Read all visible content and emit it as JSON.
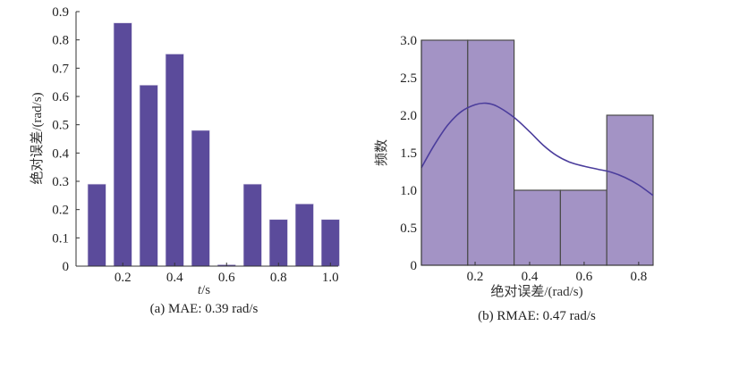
{
  "chart_data": [
    {
      "type": "bar",
      "x": [
        0.1,
        0.2,
        0.3,
        0.4,
        0.5,
        0.6,
        0.7,
        0.8,
        0.9,
        1.0
      ],
      "values": [
        0.29,
        0.86,
        0.64,
        0.75,
        0.48,
        0.005,
        0.29,
        0.165,
        0.22,
        0.165
      ],
      "xlabel_italic": "t",
      "xlabel_rest": "/s",
      "ylabel": "绝对误差/(rad/s)",
      "caption": "(a) MAE: 0.39 rad/s",
      "xlim": [
        0.02,
        1.03
      ],
      "ylim": [
        0,
        0.9
      ],
      "xticks": [
        0.2,
        0.4,
        0.6,
        0.8,
        1.0
      ],
      "xtick_labels": [
        "0.2",
        "0.4",
        "0.6",
        "0.8",
        "1.0"
      ],
      "yticks": [
        0,
        0.1,
        0.2,
        0.3,
        0.4,
        0.5,
        0.6,
        0.7,
        0.8,
        0.9
      ],
      "ytick_labels": [
        "0",
        "0.1",
        "0.2",
        "0.3",
        "0.4",
        "0.5",
        "0.6",
        "0.7",
        "0.8",
        "0.9"
      ],
      "color": "#5b4b9b",
      "grid": false
    },
    {
      "type": "histogram",
      "bin_edges": [
        0.003,
        0.173,
        0.343,
        0.513,
        0.683,
        0.853
      ],
      "counts": [
        3,
        3,
        1,
        1,
        2
      ],
      "kde": {
        "x": [
          0.003,
          0.05,
          0.1,
          0.15,
          0.2,
          0.24,
          0.28,
          0.343,
          0.4,
          0.45,
          0.5,
          0.55,
          0.6,
          0.65,
          0.7,
          0.75,
          0.8,
          0.853
        ],
        "y": [
          1.3,
          1.6,
          1.87,
          2.05,
          2.14,
          2.16,
          2.12,
          1.97,
          1.78,
          1.6,
          1.46,
          1.37,
          1.32,
          1.28,
          1.24,
          1.17,
          1.07,
          0.93
        ]
      },
      "xlabel": "绝对误差/(rad/s)",
      "ylabel": "频数",
      "caption": "(b) RMAE: 0.47 rad/s",
      "xlim": [
        0.003,
        0.853
      ],
      "ylim": [
        0,
        3.0
      ],
      "xticks": [
        0.2,
        0.4,
        0.6,
        0.8
      ],
      "xtick_labels": [
        "0.2",
        "0.4",
        "0.6",
        "0.8"
      ],
      "yticks": [
        0,
        0.5,
        1.0,
        1.5,
        2.0,
        2.5,
        3.0
      ],
      "ytick_labels": [
        "0",
        "0.5",
        "1.0",
        "1.5",
        "2.0",
        "2.5",
        "3.0"
      ],
      "bar_color": "#a393c5",
      "edge_color": "#4a4a4a",
      "line_color": "#4b3d9c",
      "grid": false
    }
  ]
}
